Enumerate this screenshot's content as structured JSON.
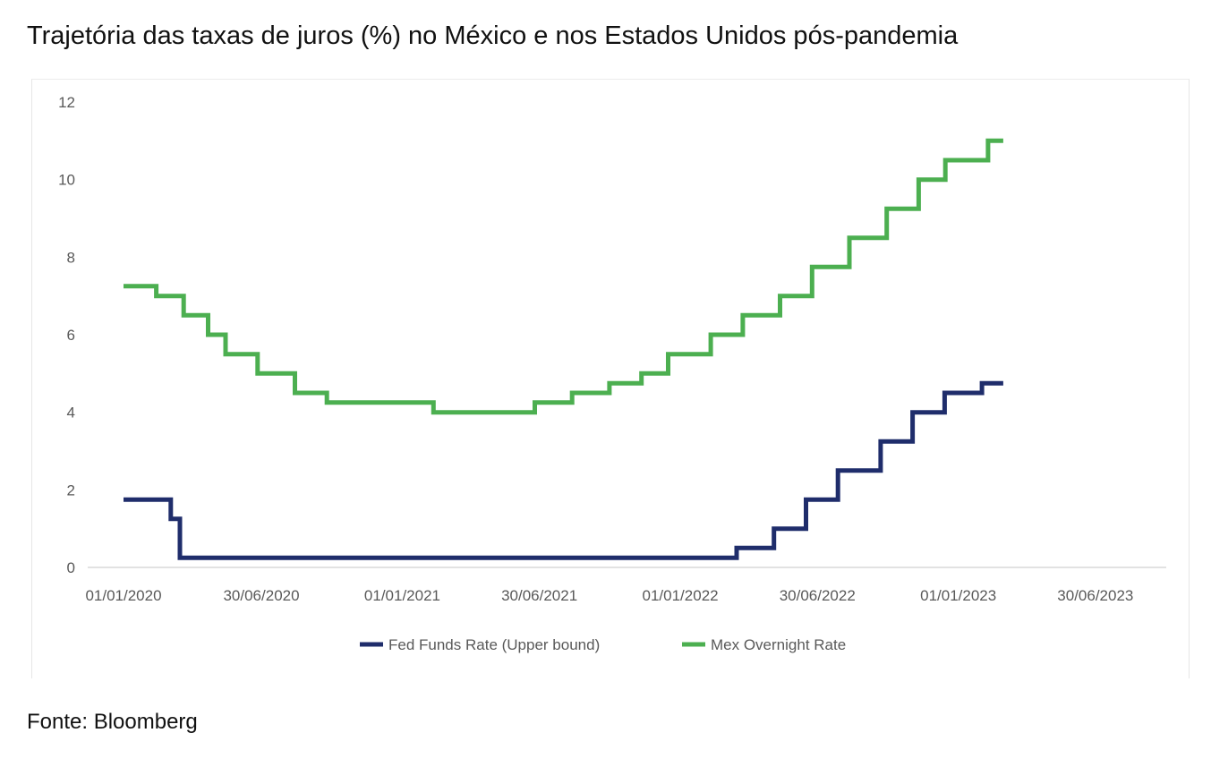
{
  "title": "Trajetória das taxas de juros (%) no México e nos Estados Unidos pós-pandemia",
  "source": "Fonte: Bloomberg",
  "chart_data": {
    "type": "line",
    "step": true,
    "title": "",
    "xlabel": "",
    "ylabel": "",
    "ylim": [
      0,
      12
    ],
    "yticks": [
      0,
      2,
      4,
      6,
      8,
      10,
      12
    ],
    "xlim": [
      "2019-11-15",
      "2023-10-01"
    ],
    "xticks": [
      "2020-01-01",
      "2020-06-30",
      "2021-01-01",
      "2021-06-30",
      "2022-01-01",
      "2022-06-30",
      "2023-01-01",
      "2023-06-30"
    ],
    "xtick_labels": [
      "01/01/2020",
      "30/06/2020",
      "01/01/2021",
      "30/06/2021",
      "01/01/2022",
      "30/06/2022",
      "01/01/2023",
      "30/06/2023"
    ],
    "grid": false,
    "legend": "bottom",
    "series": [
      {
        "name": "Fed Funds Rate (Upper bound)",
        "color": "#1f2d6b",
        "x": [
          "2020-01-01",
          "2020-03-03",
          "2020-03-15",
          "2022-03-16",
          "2022-05-04",
          "2022-06-15",
          "2022-07-27",
          "2022-09-21",
          "2022-11-02",
          "2022-12-14",
          "2023-02-01",
          "2023-03-01"
        ],
        "y": [
          1.75,
          1.25,
          0.25,
          0.5,
          1.0,
          1.75,
          2.5,
          3.25,
          4.0,
          4.5,
          4.75,
          4.75
        ]
      },
      {
        "name": "Mex Overnight Rate",
        "color": "#4caf50",
        "x": [
          "2020-01-01",
          "2020-02-13",
          "2020-03-20",
          "2020-04-21",
          "2020-05-14",
          "2020-06-25",
          "2020-08-13",
          "2020-09-24",
          "2021-02-11",
          "2021-06-24",
          "2021-08-12",
          "2021-09-30",
          "2021-11-11",
          "2021-12-16",
          "2022-02-10",
          "2022-03-24",
          "2022-05-12",
          "2022-06-23",
          "2022-08-11",
          "2022-09-29",
          "2022-11-10",
          "2022-12-15",
          "2023-02-09",
          "2023-03-01"
        ],
        "y": [
          7.25,
          7.0,
          6.5,
          6.0,
          5.5,
          5.0,
          4.5,
          4.25,
          4.0,
          4.25,
          4.5,
          4.75,
          5.0,
          5.5,
          6.0,
          6.5,
          7.0,
          7.75,
          8.5,
          9.25,
          10.0,
          10.5,
          11.0,
          11.0
        ]
      }
    ]
  }
}
